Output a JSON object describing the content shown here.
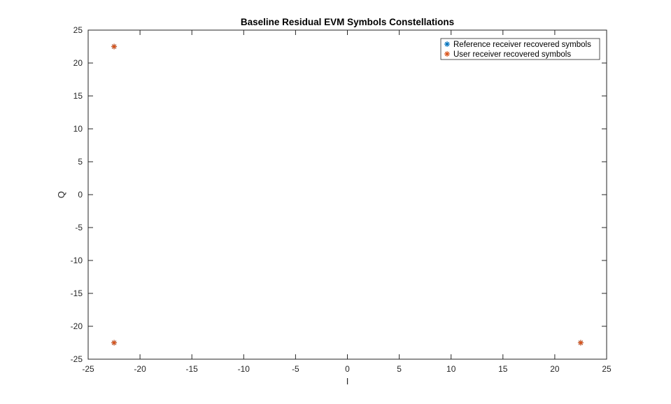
{
  "chart_data": {
    "type": "scatter",
    "title": "Baseline Residual EVM Symbols Constellations",
    "xlabel": "I",
    "ylabel": "Q",
    "xlim": [
      -25,
      25
    ],
    "ylim": [
      -25,
      25
    ],
    "xticks": [
      -25,
      -20,
      -15,
      -10,
      -5,
      0,
      5,
      10,
      15,
      20,
      25
    ],
    "yticks": [
      -25,
      -20,
      -15,
      -10,
      -5,
      0,
      5,
      10,
      15,
      20,
      25
    ],
    "grid": false,
    "box": true,
    "legend_position": "top-right",
    "series": [
      {
        "name": "Reference receiver recovered symbols",
        "marker": "asterisk",
        "color": "#0072BD",
        "points": [
          [
            -22.5,
            22.5
          ],
          [
            -22.5,
            -22.5
          ],
          [
            22.5,
            -22.5
          ]
        ]
      },
      {
        "name": "User receiver recovered symbols",
        "marker": "asterisk",
        "color": "#D95319",
        "points": [
          [
            -22.5,
            22.5
          ],
          [
            -22.5,
            -22.5
          ],
          [
            22.5,
            -22.5
          ]
        ]
      }
    ]
  }
}
